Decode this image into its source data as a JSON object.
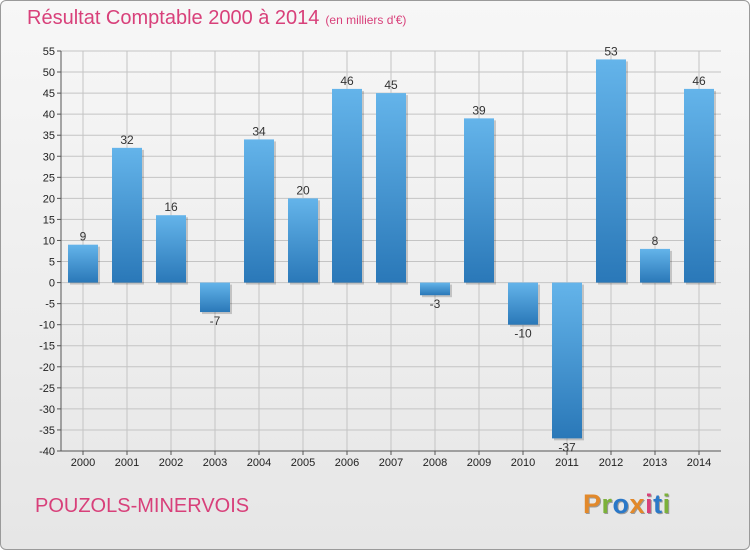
{
  "header": {
    "title": "Résultat Comptable 2000 à 2014",
    "subtitle": "(en milliers d'€)"
  },
  "footer": {
    "location": "POUZOLS-MINERVOIS",
    "logo_text": "Proxiti"
  },
  "colors": {
    "title": "#d8407a",
    "bar_light": "#64b4ea",
    "bar_dark": "#2a78b8",
    "logo_letters": [
      "#e2892b",
      "#7cb13a",
      "#2a78c8",
      "#e2892b",
      "#d8407a",
      "#2a78c8",
      "#7cb13a"
    ]
  },
  "chart_data": {
    "type": "bar",
    "title": "Résultat Comptable 2000 à 2014",
    "subtitle": "(en milliers d'€)",
    "categories": [
      "2000",
      "2001",
      "2002",
      "2003",
      "2004",
      "2005",
      "2006",
      "2007",
      "2008",
      "2009",
      "2010",
      "2011",
      "2012",
      "2013",
      "2014"
    ],
    "values": [
      9,
      32,
      16,
      -7,
      34,
      20,
      46,
      45,
      -3,
      39,
      -10,
      -37,
      53,
      8,
      46
    ],
    "ylim": [
      -40,
      55
    ],
    "yticks": [
      55,
      50,
      45,
      40,
      35,
      30,
      25,
      20,
      15,
      10,
      5,
      0,
      -5,
      -10,
      -15,
      -20,
      -25,
      -30,
      -35,
      -40
    ],
    "grid": true,
    "legend": "none"
  }
}
